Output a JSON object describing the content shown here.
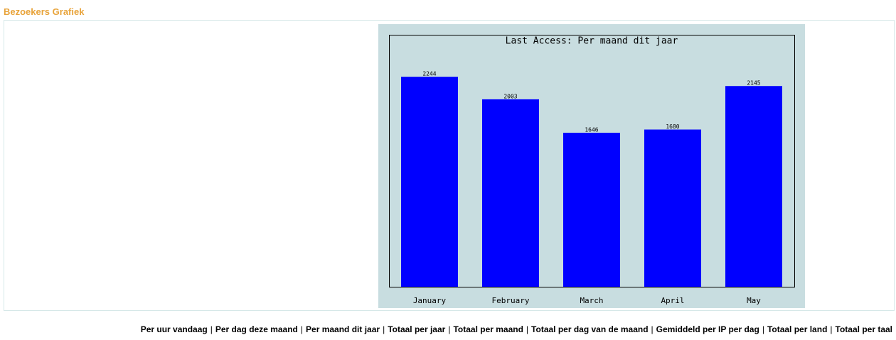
{
  "header": {
    "title": "Bezoekers Grafiek"
  },
  "chart_data": {
    "type": "bar",
    "title": "Last Access: Per maand dit jaar",
    "categories": [
      "January",
      "February",
      "March",
      "April",
      "May"
    ],
    "values": [
      2244,
      2003,
      1646,
      1680,
      2145
    ],
    "color": "#0000ff"
  },
  "links": {
    "separator": "|",
    "items": [
      "Per uur vandaag",
      "Per dag deze maand",
      "Per maand dit jaar",
      "Totaal per jaar",
      "Totaal per maand",
      "Totaal per dag van de maand",
      "Gemiddeld per IP per dag",
      "Totaal per land",
      "Totaal per taal"
    ]
  }
}
